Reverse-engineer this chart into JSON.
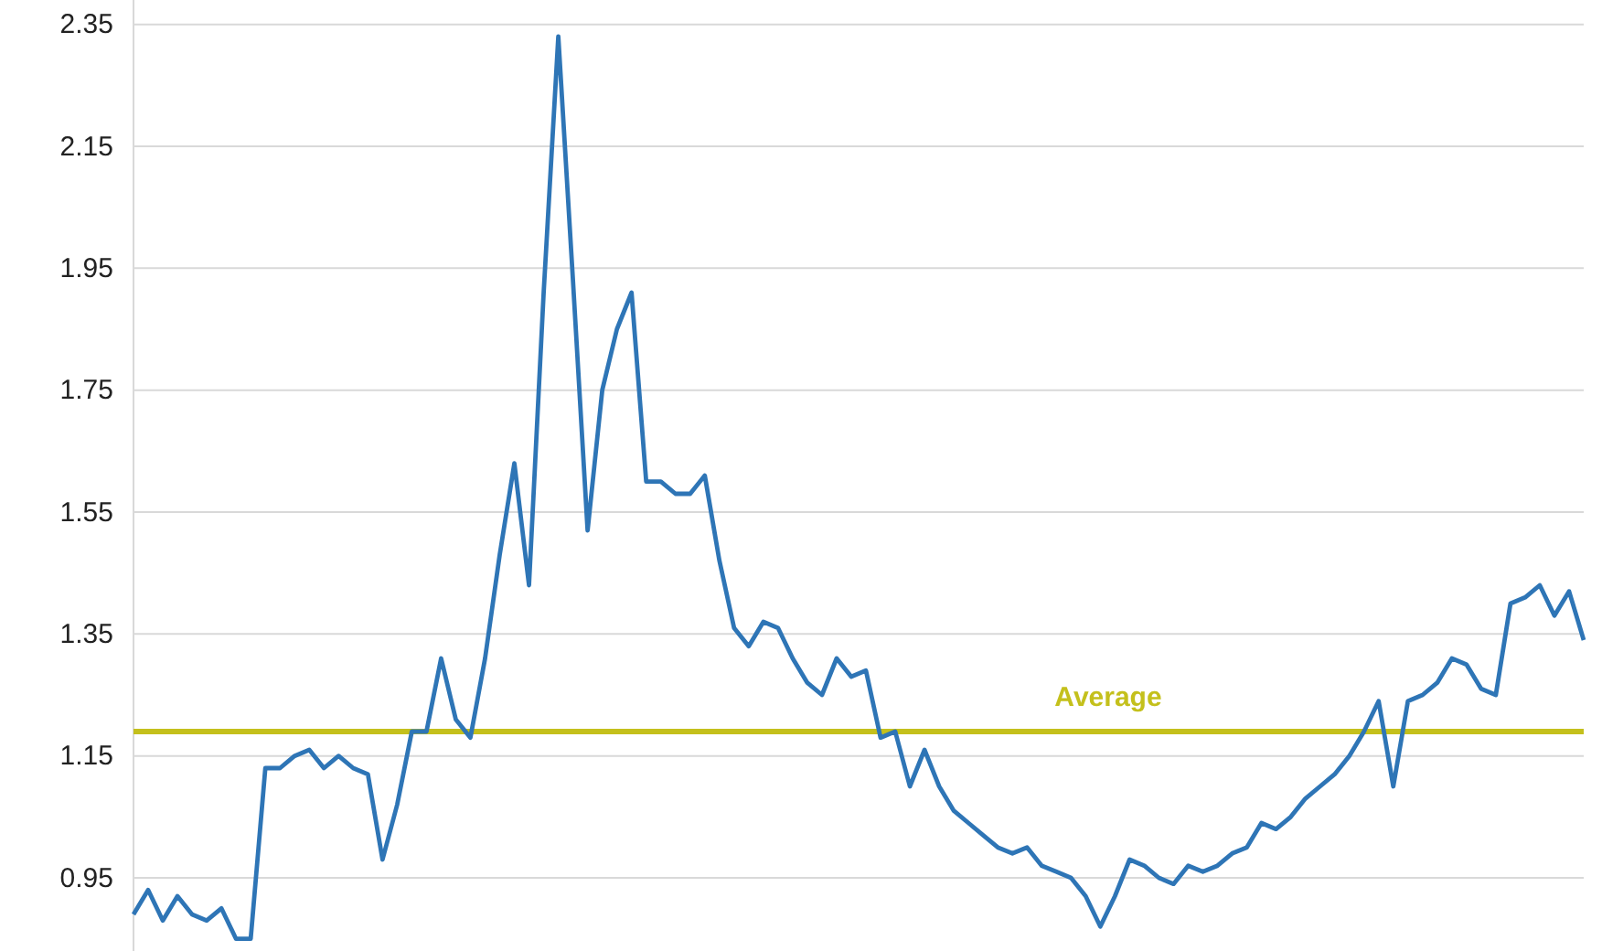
{
  "chart_data": {
    "type": "line",
    "categories": [
      null,
      null,
      null,
      null,
      null,
      null,
      null,
      null,
      null,
      null,
      null,
      null,
      null,
      null,
      null,
      null,
      null,
      null,
      null,
      null,
      null,
      null,
      null,
      null,
      null,
      null,
      null,
      null,
      null,
      null,
      null,
      null,
      null,
      null,
      null,
      null,
      null,
      null,
      null,
      null,
      null,
      null,
      null,
      null,
      null,
      null,
      null,
      null,
      null,
      null,
      null,
      null,
      null,
      null,
      null,
      null,
      null,
      null,
      null,
      null,
      null,
      null,
      null,
      null,
      null,
      null,
      null,
      null,
      null,
      null,
      null,
      null,
      null,
      null,
      null,
      null,
      null,
      null,
      null,
      null,
      null,
      null,
      null,
      null,
      null,
      null,
      null,
      null,
      null,
      null,
      null,
      null,
      null,
      null,
      null,
      null,
      null,
      null,
      null,
      null
    ],
    "series": [
      {
        "color": "#2e75b6",
        "values": [
          0.89,
          0.93,
          0.88,
          0.92,
          0.89,
          0.88,
          0.9,
          0.85,
          0.85,
          1.13,
          1.13,
          1.15,
          1.16,
          1.13,
          1.15,
          1.13,
          1.12,
          0.98,
          1.07,
          1.19,
          1.19,
          1.31,
          1.21,
          1.18,
          1.31,
          1.48,
          1.63,
          1.43,
          1.91,
          2.33,
          1.93,
          1.52,
          1.75,
          1.85,
          1.91,
          1.6,
          1.6,
          1.58,
          1.58,
          1.61,
          1.47,
          1.36,
          1.33,
          1.37,
          1.36,
          1.31,
          1.27,
          1.25,
          1.31,
          1.28,
          1.29,
          1.18,
          1.19,
          1.1,
          1.16,
          1.1,
          1.06,
          1.04,
          1.02,
          1.0,
          0.99,
          1.0,
          0.97,
          0.96,
          0.95,
          0.92,
          0.87,
          0.92,
          0.98,
          0.97,
          0.95,
          0.94,
          0.97,
          0.96,
          0.97,
          0.99,
          1.0,
          1.04,
          1.03,
          1.05,
          1.08,
          1.1,
          1.12,
          1.15,
          1.19,
          1.24,
          1.1,
          1.24,
          1.25,
          1.27,
          1.31,
          1.3,
          1.26,
          1.25,
          1.4,
          1.41,
          1.43,
          1.38,
          1.42,
          1.34
        ]
      }
    ],
    "ylim": [
      0.83,
      2.39
    ],
    "yticks": [
      0.95,
      1.15,
      1.35,
      1.55,
      1.75,
      1.95,
      2.15,
      2.35
    ],
    "grid": "y",
    "tick_labels": "y",
    "line_style": "solid",
    "marker": "none",
    "ref_lines": [
      {
        "axis": "y",
        "value": 1.19,
        "label": "Average",
        "color": "#c4c01c"
      }
    ]
  }
}
